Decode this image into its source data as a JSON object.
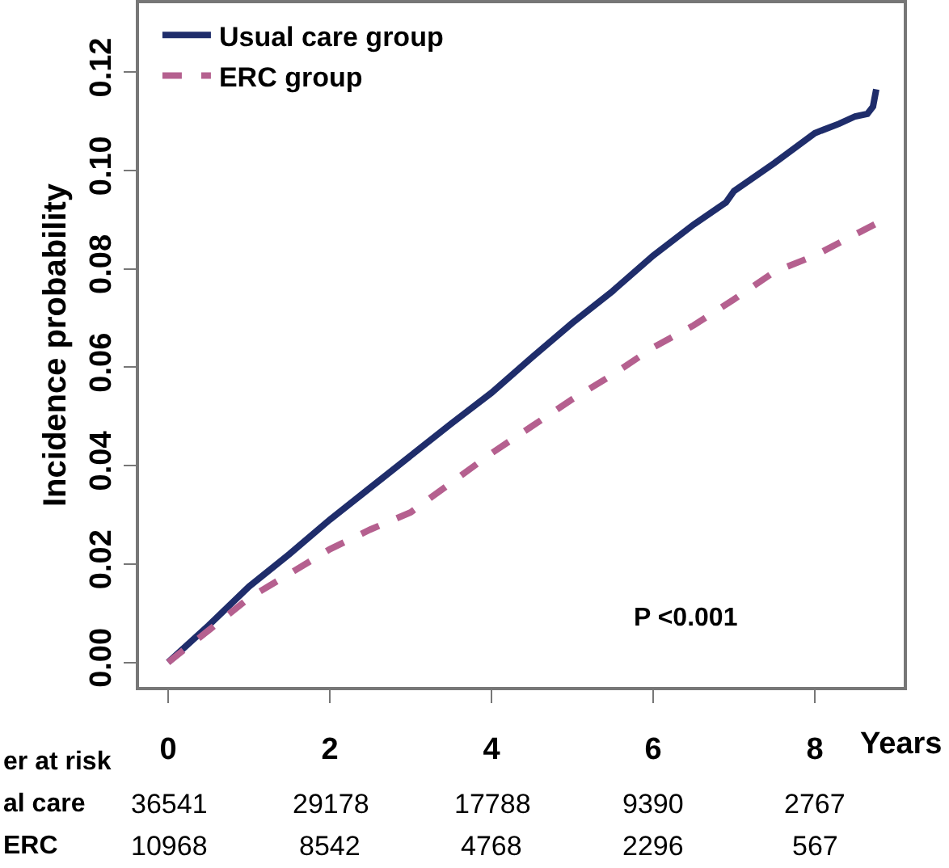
{
  "chart_data": {
    "type": "line",
    "xlabel": "Years",
    "ylabel": "Incidence probability",
    "xlim": [
      -0.36,
      9.1
    ],
    "xticks": [
      0,
      2,
      4,
      6,
      8
    ],
    "ylim": [
      -0.005,
      0.134
    ],
    "yticks": [
      {
        "value": 0,
        "label": "0.00"
      },
      {
        "value": 0.02,
        "label": "0.02"
      },
      {
        "value": 0.04,
        "label": "0.04"
      },
      {
        "value": 0.06,
        "label": "0.06"
      },
      {
        "value": 0.08,
        "label": "0.08"
      },
      {
        "value": 0.1,
        "label": "0.10"
      },
      {
        "value": 0.12,
        "label": "0.12"
      }
    ],
    "grid": false,
    "legend": "top left",
    "marker": "none",
    "series": [
      {
        "name": "Usual care group",
        "color": "#1f2d6b",
        "line_style": "solid",
        "x": [
          0,
          0.5,
          1,
          1.5,
          2,
          2.5,
          3,
          3.5,
          4,
          4.5,
          5,
          5.5,
          6,
          6.5,
          6.9,
          7,
          7.5,
          8,
          8.3,
          8.5,
          8.65,
          8.72,
          8.76
        ],
        "values": [
          0,
          0.0075,
          0.0154,
          0.022,
          0.029,
          0.0355,
          0.042,
          0.0485,
          0.0548,
          0.062,
          0.069,
          0.0755,
          0.0827,
          0.089,
          0.0935,
          0.0958,
          0.1015,
          0.1076,
          0.1095,
          0.111,
          0.1115,
          0.113,
          0.1165
        ]
      },
      {
        "name": "ERC group",
        "color": "#b5608f",
        "line_style": "dashed",
        "x": [
          0,
          0.5,
          1,
          1.5,
          2,
          2.5,
          3,
          3.5,
          4,
          4.5,
          5,
          5.5,
          6,
          6.5,
          7,
          7.5,
          8,
          8.5,
          8.76
        ],
        "values": [
          0,
          0.0065,
          0.0131,
          0.018,
          0.023,
          0.027,
          0.0305,
          0.0365,
          0.0425,
          0.048,
          0.0535,
          0.0585,
          0.064,
          0.0685,
          0.0738,
          0.0794,
          0.0827,
          0.087,
          0.0892
        ]
      }
    ],
    "annotations": [
      "P <0.001",
      "er at risk",
      "al care",
      "36541",
      "29178",
      "17788",
      "9390",
      "2767",
      "ERC",
      "10968",
      "8542",
      "4768",
      "2296",
      "567"
    ]
  }
}
